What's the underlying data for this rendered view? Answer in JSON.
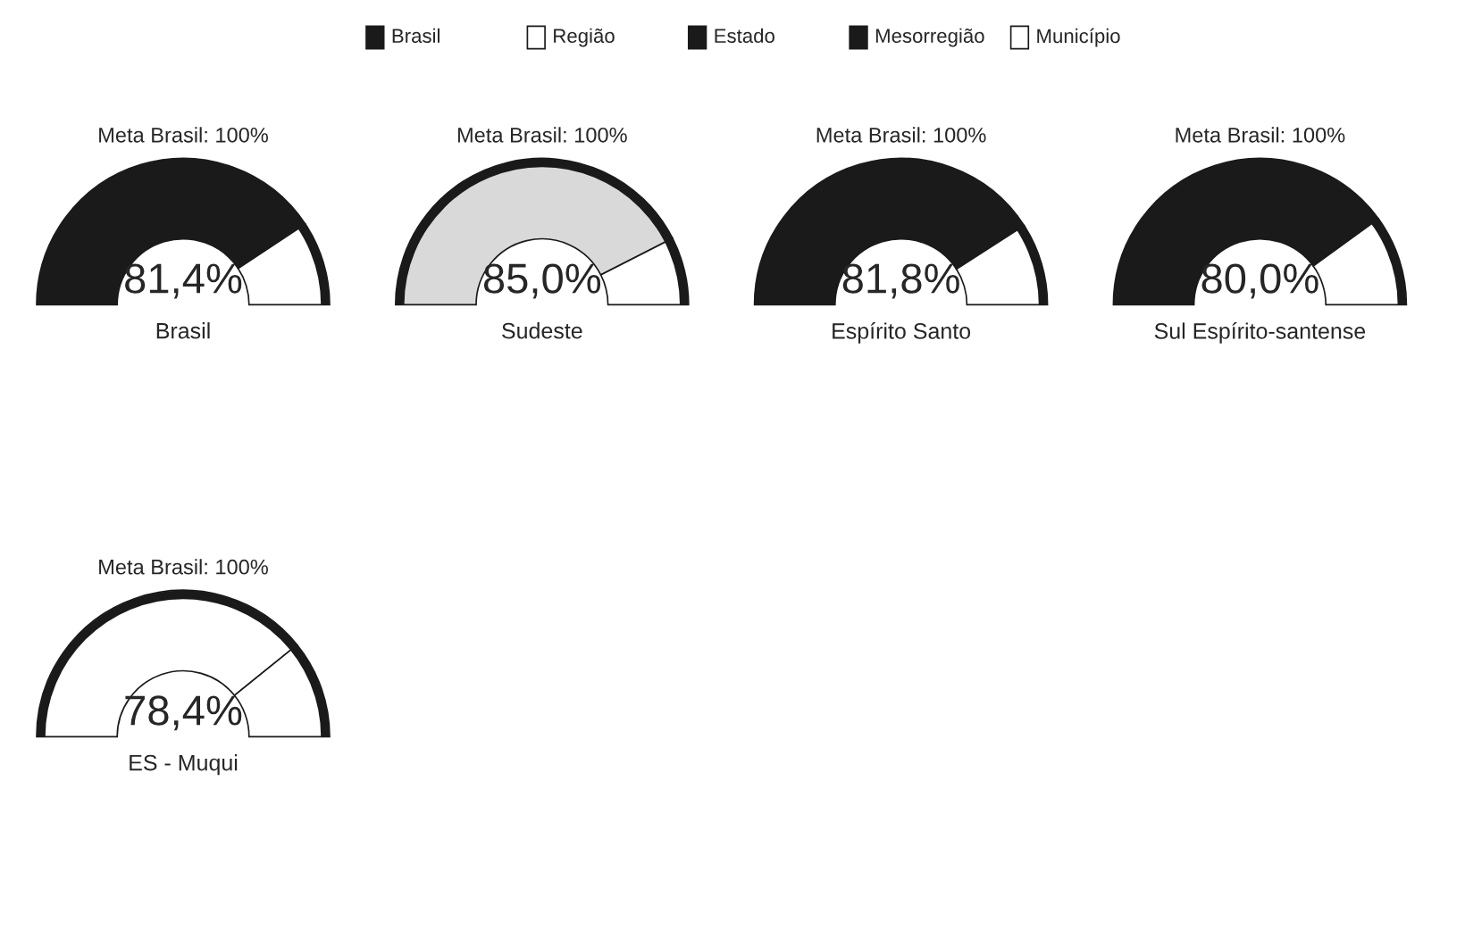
{
  "chart_data": [
    {
      "type": "other",
      "categories": [
        "Brasil",
        "Região",
        "Estado",
        "Mesorregião",
        "Município"
      ],
      "colors": [
        "#1a1a1a",
        "#ffffff",
        "#1a1a1a",
        "#1a1a1a",
        "#ffffff"
      ]
    },
    {
      "type": "donut",
      "title": "Meta Brasil: 100%",
      "xlabel": "Brasil",
      "categories": [
        null,
        null
      ],
      "values": [
        81.4,
        18.6
      ],
      "colors": [
        "#1a1a1a",
        "#ffffff"
      ],
      "value_labels": [
        "81,4%",
        null
      ]
    },
    {
      "type": "donut",
      "title": "Meta Brasil: 100%",
      "xlabel": "Sudeste",
      "categories": [
        null,
        null
      ],
      "values": [
        85.0,
        15.0
      ],
      "colors": [
        "#d9d9d9",
        "#ffffff"
      ],
      "value_labels": [
        "85,0%",
        null
      ]
    },
    {
      "type": "donut",
      "title": "Meta Brasil: 100%",
      "xlabel": "Espírito Santo",
      "categories": [
        null,
        null
      ],
      "values": [
        81.8,
        18.2
      ],
      "colors": [
        "#1a1a1a",
        "#ffffff"
      ],
      "value_labels": [
        "81,8%",
        null
      ]
    },
    {
      "type": "donut",
      "title": "Meta Brasil: 100%",
      "xlabel": "Sul Espírito-santense",
      "categories": [
        null,
        null
      ],
      "values": [
        80.0,
        20.0
      ],
      "colors": [
        "#1a1a1a",
        "#ffffff"
      ],
      "value_labels": [
        "80,0%",
        null
      ]
    },
    {
      "type": "donut",
      "title": "Meta Brasil: 100%",
      "xlabel": "ES - Muqui",
      "categories": [
        null,
        null
      ],
      "values": [
        78.4,
        21.6
      ],
      "colors": [
        "#ffffff",
        "#ffffff"
      ],
      "value_labels": [
        "78,4%",
        null
      ]
    }
  ]
}
